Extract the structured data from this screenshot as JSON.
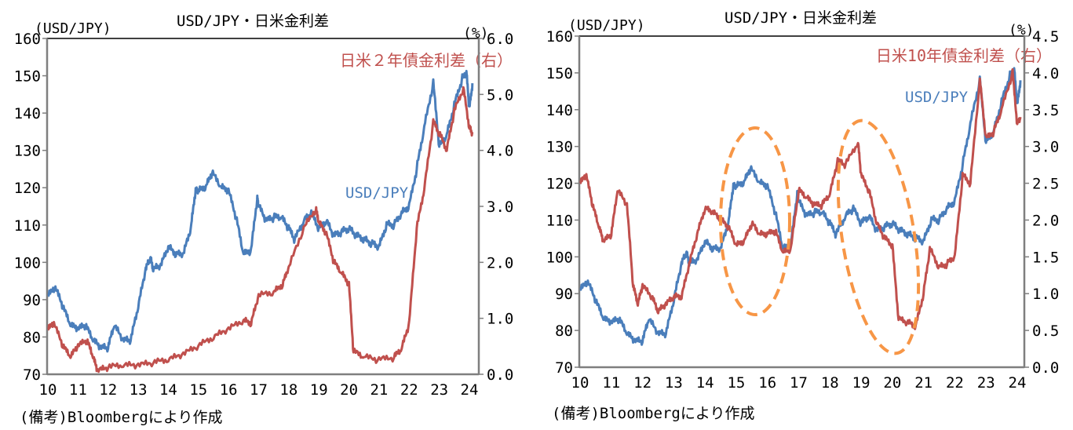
{
  "colors": {
    "usdjpy": "#4a7ebb",
    "spread": "#c0504d",
    "oval": "#f79646",
    "axis": "#7f7f7f"
  },
  "chart_data": [
    {
      "type": "line",
      "title": "USD/JPY・日米金利差",
      "ylabel": "(USD/JPY)",
      "y2label": "(%)",
      "xticks": [
        "10",
        "11",
        "12",
        "13",
        "14",
        "15",
        "16",
        "17",
        "18",
        "19",
        "20",
        "21",
        "22",
        "23",
        "24"
      ],
      "yticks": [
        "70",
        "80",
        "90",
        "100",
        "110",
        "120",
        "130",
        "140",
        "150",
        "160"
      ],
      "y2ticks": [
        "0.0",
        "1.0",
        "2.0",
        "3.0",
        "4.0",
        "5.0",
        "6.0"
      ],
      "ylim": [
        70,
        160
      ],
      "y2lim": [
        0,
        6
      ],
      "xlim": [
        2010,
        2024.25
      ],
      "grid": false,
      "series": [
        {
          "name": "USD/JPY",
          "axis": "left",
          "x": [
            2010,
            2010.25,
            2010.5,
            2010.75,
            2011,
            2011.25,
            2011.5,
            2011.75,
            2012,
            2012.2,
            2012.5,
            2012.75,
            2013,
            2013.25,
            2013.4,
            2013.5,
            2013.75,
            2014,
            2014.25,
            2014.5,
            2014.75,
            2014.9,
            2015,
            2015.25,
            2015.45,
            2015.75,
            2016,
            2016.25,
            2016.5,
            2016.75,
            2016.95,
            2017,
            2017.25,
            2017.5,
            2017.75,
            2018,
            2018.2,
            2018.5,
            2018.75,
            2019,
            2019.25,
            2019.5,
            2019.75,
            2020,
            2020.25,
            2020.5,
            2020.75,
            2021,
            2021.25,
            2021.5,
            2021.75,
            2022,
            2022.25,
            2022.5,
            2022.8,
            2023,
            2023.25,
            2023.5,
            2023.75,
            2023.9,
            2024,
            2024.1
          ],
          "y": [
            91,
            93,
            88,
            83,
            82,
            83,
            79,
            77,
            77,
            83,
            79,
            79,
            88,
            98,
            101,
            98,
            99,
            104,
            102,
            102,
            109,
            119,
            119,
            120,
            124,
            120,
            119,
            112,
            102,
            103,
            117,
            115,
            111,
            112,
            112,
            109,
            106,
            111,
            113,
            109,
            111,
            107,
            108,
            109,
            107,
            106,
            105,
            104,
            110,
            110,
            113,
            115,
            125,
            136,
            148,
            131,
            134,
            142,
            149,
            151,
            141,
            148
          ]
        },
        {
          "name": "日米２年債金利差（右）",
          "axis": "right",
          "x": [
            2010,
            2010.2,
            2010.5,
            2010.75,
            2011,
            2011.3,
            2011.5,
            2011.65,
            2012,
            2012.5,
            2013,
            2013.5,
            2014,
            2014.5,
            2015,
            2015.5,
            2016,
            2016.5,
            2016.75,
            2017,
            2017.5,
            2017.8,
            2018,
            2018.5,
            2018.9,
            2019,
            2019.25,
            2019.5,
            2019.75,
            2020,
            2020.15,
            2020.5,
            2021,
            2021.5,
            2021.75,
            2022,
            2022.25,
            2022.5,
            2022.8,
            2023,
            2023.25,
            2023.5,
            2023.8,
            2024,
            2024.1
          ],
          "y": [
            0.8,
            0.9,
            0.5,
            0.3,
            0.5,
            0.6,
            0.3,
            0.05,
            0.12,
            0.15,
            0.15,
            0.2,
            0.25,
            0.35,
            0.5,
            0.65,
            0.8,
            0.95,
            0.9,
            1.4,
            1.45,
            1.6,
            1.9,
            2.6,
            2.95,
            2.7,
            2.5,
            2.0,
            1.8,
            1.6,
            0.4,
            0.3,
            0.25,
            0.3,
            0.45,
            0.9,
            2.6,
            3.3,
            4.5,
            4.3,
            4.0,
            4.7,
            5.1,
            4.4,
            4.3
          ]
        }
      ],
      "annotations": [
        "USD/JPY",
        "日米２年債金利差（右）"
      ],
      "source": "(備考)Bloombergにより作成"
    },
    {
      "type": "line",
      "title": "USD/JPY・日米金利差",
      "ylabel": "(USD/JPY)",
      "y2label": "(%)",
      "xticks": [
        "10",
        "11",
        "12",
        "13",
        "14",
        "15",
        "16",
        "17",
        "18",
        "19",
        "20",
        "21",
        "22",
        "23",
        "24"
      ],
      "yticks": [
        "70",
        "80",
        "90",
        "100",
        "110",
        "120",
        "130",
        "140",
        "150",
        "160"
      ],
      "y2ticks": [
        "0.0",
        "0.5",
        "1.0",
        "1.5",
        "2.0",
        "2.5",
        "3.0",
        "3.5",
        "4.0",
        "4.5"
      ],
      "ylim": [
        70,
        160
      ],
      "y2lim": [
        0,
        4.5
      ],
      "xlim": [
        2010,
        2024.15
      ],
      "grid": false,
      "series": [
        {
          "name": "USD/JPY",
          "axis": "left",
          "x": [
            2010,
            2010.25,
            2010.5,
            2010.75,
            2011,
            2011.25,
            2011.5,
            2011.75,
            2012,
            2012.2,
            2012.5,
            2012.75,
            2013,
            2013.25,
            2013.4,
            2013.5,
            2013.75,
            2014,
            2014.25,
            2014.5,
            2014.75,
            2014.9,
            2015,
            2015.25,
            2015.45,
            2015.75,
            2016,
            2016.25,
            2016.5,
            2016.75,
            2016.95,
            2017,
            2017.25,
            2017.5,
            2017.75,
            2018,
            2018.2,
            2018.5,
            2018.75,
            2019,
            2019.25,
            2019.5,
            2019.75,
            2020,
            2020.25,
            2020.5,
            2020.75,
            2021,
            2021.25,
            2021.5,
            2021.75,
            2022,
            2022.25,
            2022.5,
            2022.8,
            2023,
            2023.25,
            2023.5,
            2023.75,
            2023.9,
            2024,
            2024.1
          ],
          "y": [
            91,
            93,
            88,
            83,
            82,
            83,
            79,
            77,
            77,
            83,
            79,
            79,
            88,
            98,
            101,
            98,
            99,
            104,
            102,
            102,
            109,
            119,
            119,
            120,
            124,
            120,
            119,
            112,
            102,
            103,
            117,
            115,
            111,
            112,
            112,
            109,
            106,
            111,
            113,
            109,
            111,
            107,
            108,
            109,
            107,
            106,
            105,
            104,
            110,
            110,
            113,
            115,
            125,
            136,
            148,
            131,
            134,
            142,
            149,
            151,
            141,
            148
          ]
        },
        {
          "name": "日米10年債金利差（右）",
          "axis": "right",
          "x": [
            2010,
            2010.2,
            2010.4,
            2010.6,
            2010.75,
            2011,
            2011.2,
            2011.5,
            2011.7,
            2011.85,
            2012,
            2012.3,
            2012.5,
            2012.75,
            2013,
            2013.25,
            2013.5,
            2013.75,
            2014,
            2014.25,
            2014.5,
            2014.75,
            2015,
            2015.25,
            2015.5,
            2015.75,
            2016,
            2016.25,
            2016.5,
            2016.75,
            2017,
            2017.25,
            2017.5,
            2017.75,
            2018,
            2018.25,
            2018.5,
            2018.9,
            2019,
            2019.25,
            2019.5,
            2019.75,
            2020,
            2020.2,
            2020.5,
            2020.75,
            2021,
            2021.2,
            2021.5,
            2021.75,
            2022,
            2022.25,
            2022.5,
            2022.8,
            2023,
            2023.25,
            2023.5,
            2023.85,
            2024,
            2024.1
          ],
          "y": [
            2.5,
            2.6,
            2.2,
            1.9,
            1.7,
            1.8,
            2.4,
            2.2,
            1.1,
            0.85,
            1.1,
            0.95,
            0.75,
            0.85,
            0.95,
            0.95,
            1.4,
            1.8,
            2.15,
            2.1,
            2.0,
            1.9,
            1.65,
            1.7,
            1.95,
            1.8,
            1.8,
            1.85,
            1.55,
            1.6,
            2.4,
            2.3,
            2.2,
            2.2,
            2.35,
            2.8,
            2.75,
            3.05,
            2.6,
            2.4,
            1.95,
            1.75,
            1.65,
            0.65,
            0.6,
            0.55,
            1.0,
            1.6,
            1.35,
            1.4,
            1.5,
            2.6,
            2.5,
            3.9,
            3.1,
            3.2,
            3.5,
            4.0,
            3.3,
            3.4
          ]
        }
      ],
      "annotations": [
        "USD/JPY",
        "日米10年債金利差（右）"
      ],
      "source": "(備考)Bloombergにより作成"
    }
  ]
}
